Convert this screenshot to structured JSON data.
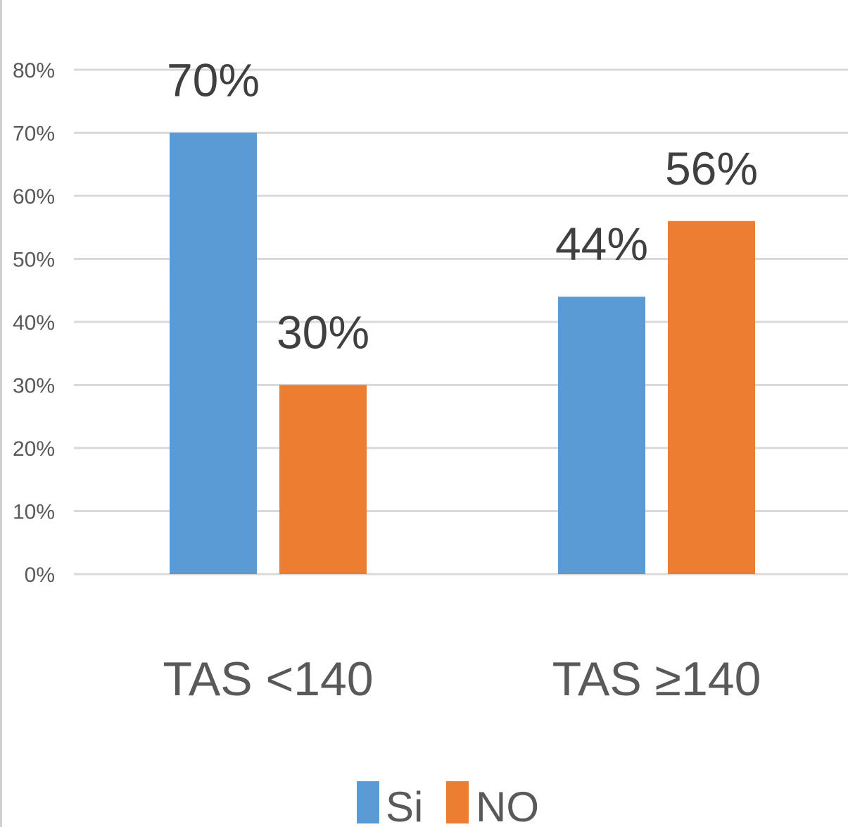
{
  "chart_data": {
    "type": "bar",
    "title": "",
    "xlabel": "",
    "ylabel": "",
    "categories": [
      "TAS <140",
      "TAS ≥140"
    ],
    "series": [
      {
        "name": "Si",
        "values": [
          70,
          44
        ],
        "color": "#5B9BD5"
      },
      {
        "name": "NO",
        "values": [
          30,
          56
        ],
        "color": "#ED7D31"
      }
    ],
    "ylim": [
      0,
      80
    ],
    "y_ticks": [
      "0%",
      "10%",
      "20%",
      "30%",
      "40%",
      "50%",
      "60%",
      "70%",
      "80%"
    ],
    "data_labels": [
      [
        "70%",
        "44%"
      ],
      [
        "30%",
        "56%"
      ]
    ],
    "grid": true,
    "legend": "bottom",
    "gridline_color": "#d9d9d9"
  }
}
